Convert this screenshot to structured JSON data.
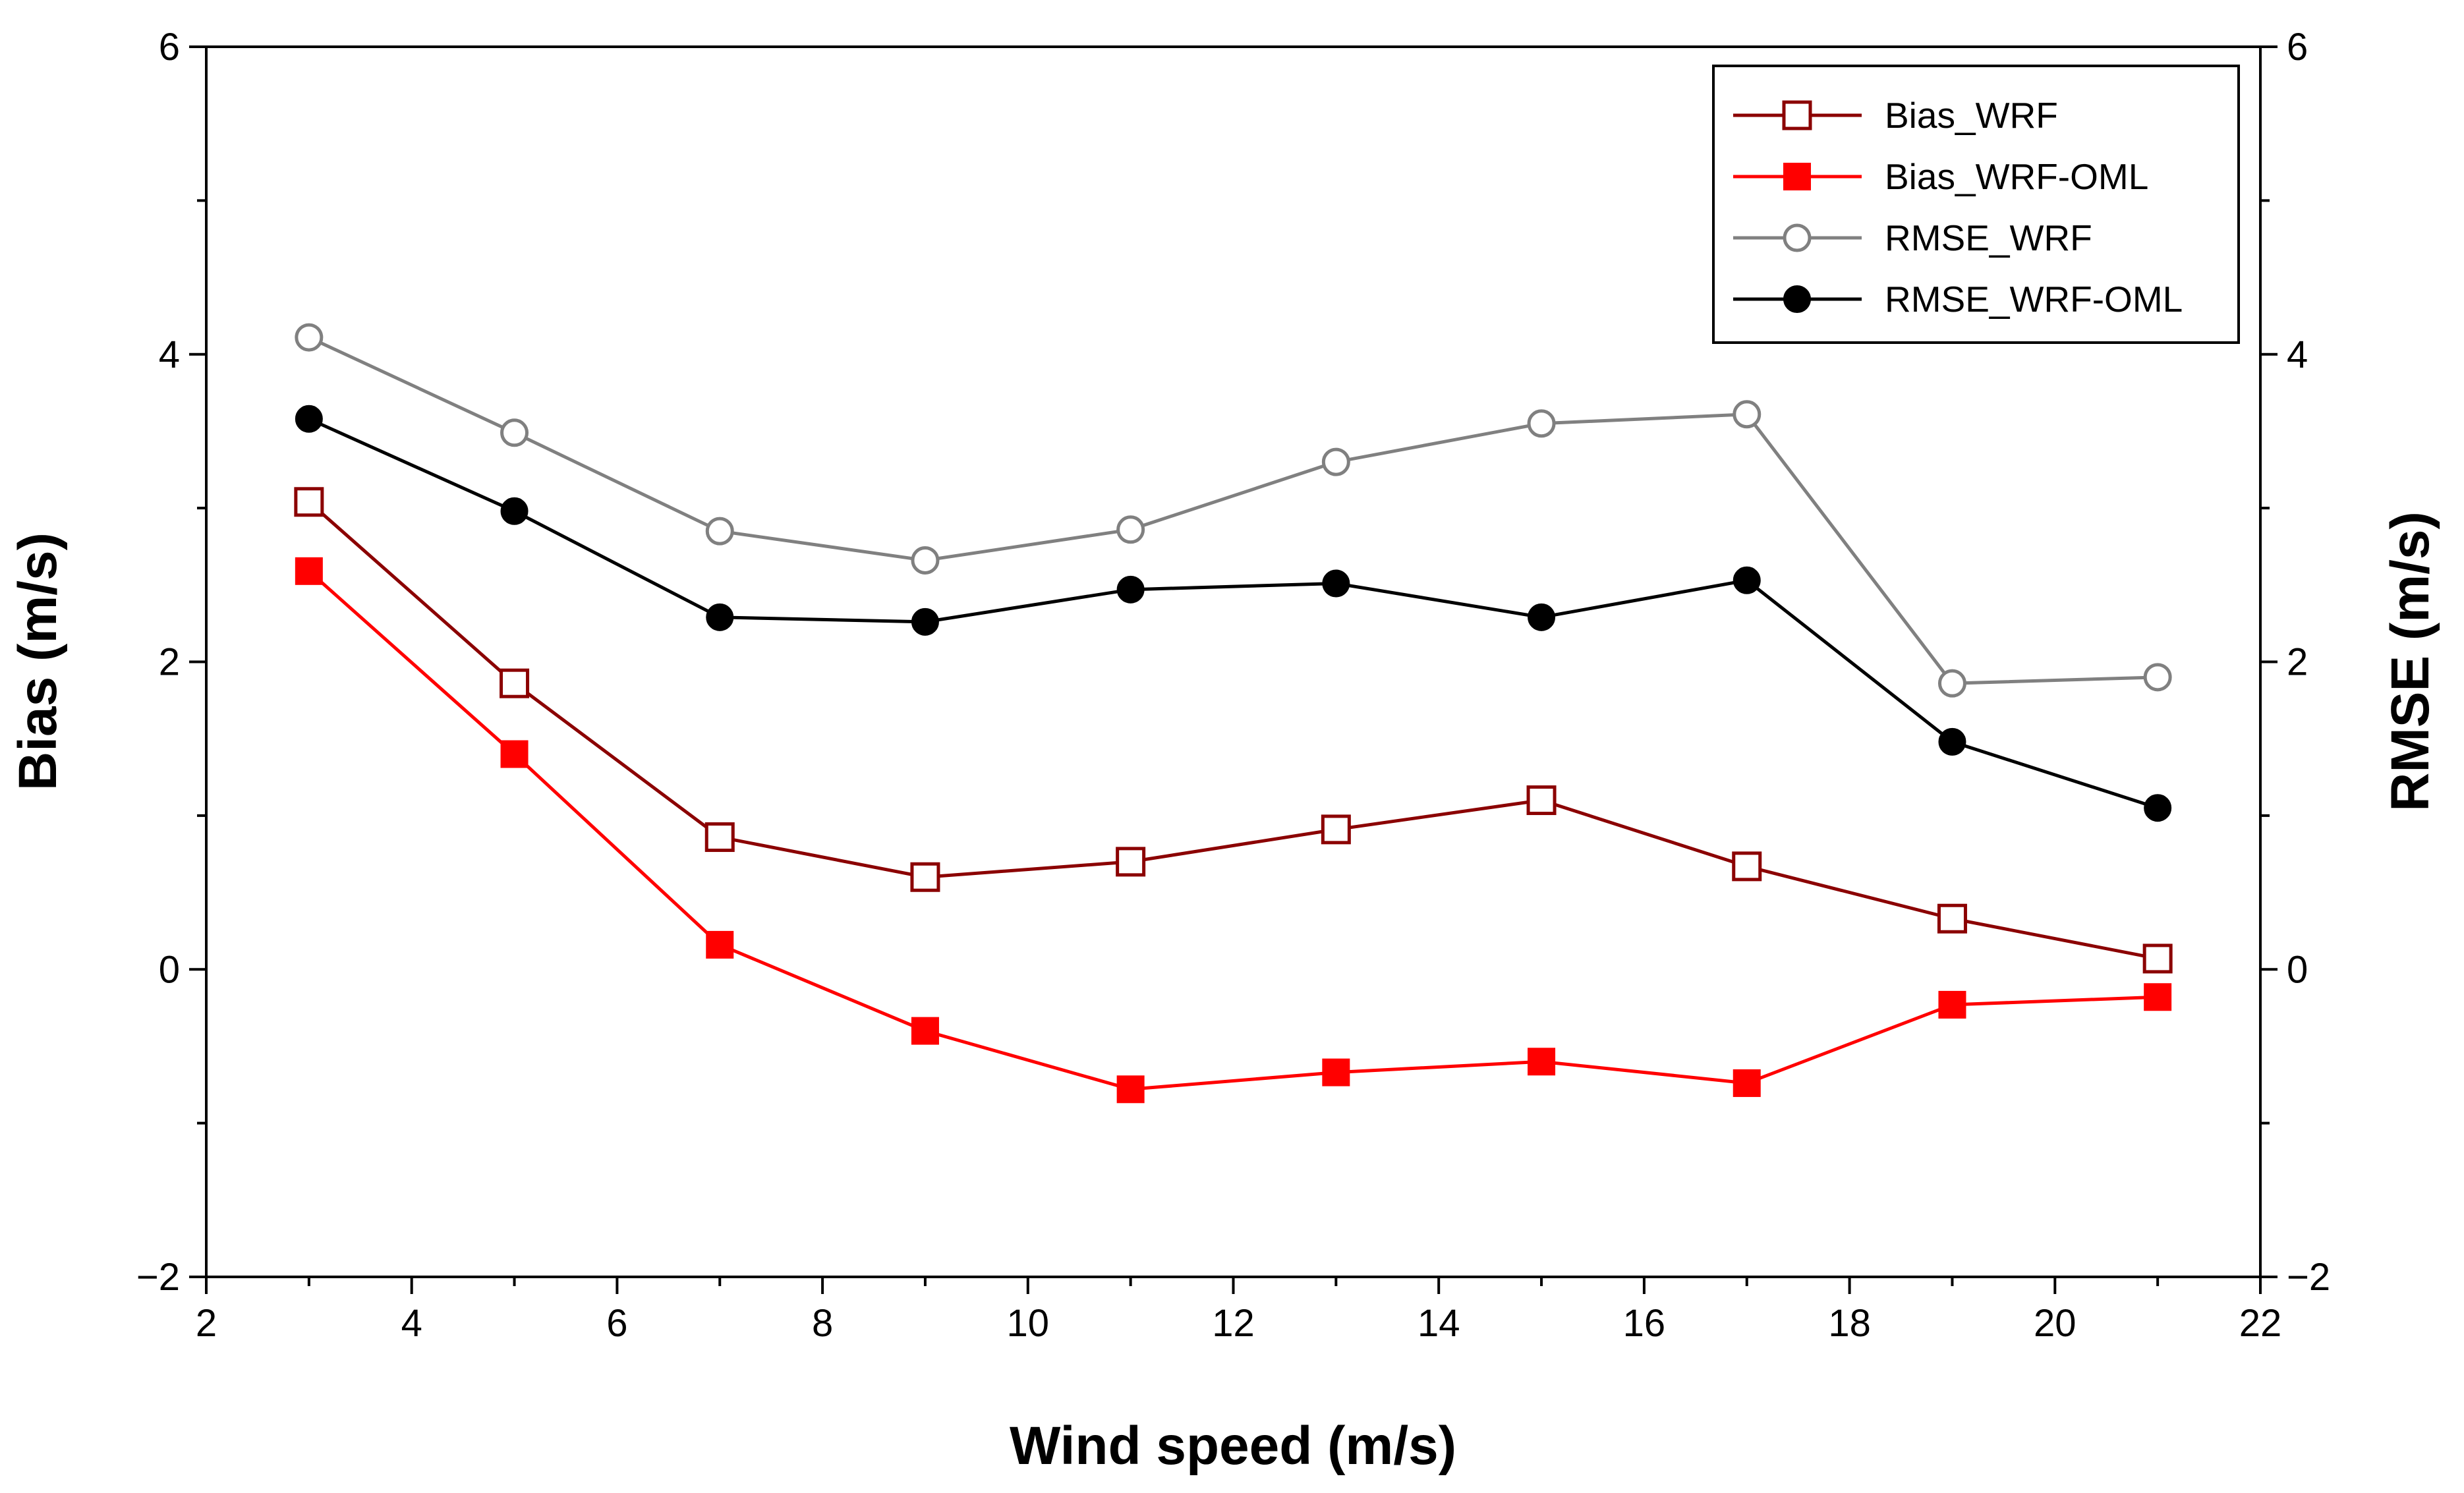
{
  "chart_data": {
    "type": "line",
    "title": "",
    "xlabel": "Wind speed (m/s)",
    "ylabel": "Bias (m/s)",
    "y2label": "RMSE (m/s)",
    "xlim": [
      2,
      22
    ],
    "ylim": [
      -2,
      6
    ],
    "y2lim": [
      -2,
      6
    ],
    "xticks": [
      2,
      4,
      6,
      8,
      10,
      12,
      14,
      16,
      18,
      20,
      22
    ],
    "yticks": [
      -2,
      0,
      2,
      4,
      6
    ],
    "y2ticks": [
      -2,
      0,
      2,
      4,
      6
    ],
    "grid": false,
    "legend_position": "top-right",
    "x": [
      3,
      5,
      7,
      9,
      11,
      13,
      15,
      17,
      19,
      21
    ],
    "series": [
      {
        "name": "Bias_WRF",
        "axis": "left",
        "marker": "square-open",
        "color": "#8b0000",
        "values": [
          3.04,
          1.86,
          0.86,
          0.6,
          0.7,
          0.91,
          1.1,
          0.67,
          0.33,
          0.07
        ]
      },
      {
        "name": "Bias_WRF-OML",
        "axis": "left",
        "marker": "square-filled",
        "color": "#ff0000",
        "values": [
          2.59,
          1.4,
          0.16,
          -0.4,
          -0.78,
          -0.67,
          -0.6,
          -0.74,
          -0.23,
          -0.18
        ]
      },
      {
        "name": "RMSE_WRF",
        "axis": "right",
        "marker": "circle-open",
        "color": "#808080",
        "values": [
          4.11,
          3.49,
          2.85,
          2.66,
          2.86,
          3.3,
          3.55,
          3.61,
          1.86,
          1.9
        ]
      },
      {
        "name": "RMSE_WRF-OML",
        "axis": "right",
        "marker": "circle-filled",
        "color": "#000000",
        "values": [
          3.58,
          2.98,
          2.29,
          2.26,
          2.47,
          2.51,
          2.29,
          2.53,
          1.48,
          1.05
        ]
      }
    ]
  }
}
